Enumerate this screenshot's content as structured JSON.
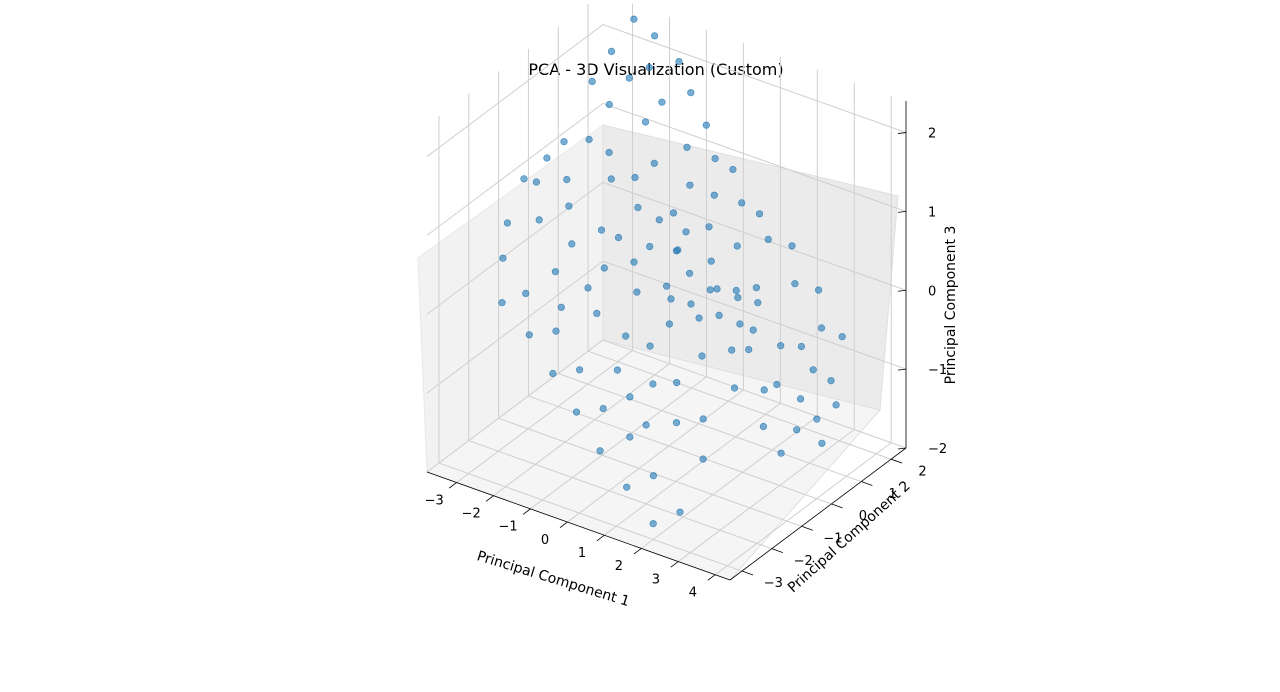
{
  "chart_data": {
    "type": "scatter",
    "projection": "3d",
    "title": "PCA - 3D Visualization (Custom)",
    "xlabel": "Principal Component 1",
    "ylabel": "Principal Component 2",
    "zlabel": "Principal Component 3",
    "xlim": [
      -3.8,
      4.4
    ],
    "ylim": [
      -3.4,
      2.5
    ],
    "zlim": [
      -2.0,
      2.4
    ],
    "xticks": [
      "−3",
      "−2",
      "−1",
      "0",
      "1",
      "2",
      "3",
      "4"
    ],
    "yticks": [
      "−3",
      "−2",
      "−1",
      "0",
      "1",
      "2"
    ],
    "zticks": [
      "−2",
      "−1",
      "0",
      "1",
      "2"
    ],
    "grid": true,
    "marker_color": "#1f77b4",
    "marker_alpha": 0.6,
    "points": [
      [
        -2.6,
        1.3,
        2.2
      ],
      [
        -2.8,
        0.9,
        1.9
      ],
      [
        -2.5,
        1.1,
        1.6
      ],
      [
        -2.2,
        1.4,
        1.9
      ],
      [
        -1.9,
        1.7,
        2.0
      ],
      [
        -2.1,
        0.6,
        1.2
      ],
      [
        -1.6,
        1.2,
        1.5
      ],
      [
        -1.4,
        1.5,
        1.7
      ],
      [
        -1.2,
        1.0,
        1.1
      ],
      [
        -0.8,
        1.6,
        1.2
      ],
      [
        -0.6,
        0.9,
        0.6
      ],
      [
        -0.4,
        1.2,
        0.9
      ],
      [
        -0.1,
        0.7,
        0.5
      ],
      [
        0.2,
        1.1,
        0.5
      ],
      [
        0.5,
        0.8,
        0.2
      ],
      [
        0.8,
        1.3,
        0.3
      ],
      [
        1.1,
        0.9,
        -0.1
      ],
      [
        1.4,
        1.2,
        -0.1
      ],
      [
        1.8,
        0.6,
        -0.4
      ],
      [
        2.3,
        0.9,
        -0.6
      ],
      [
        2.6,
        0.4,
        -0.9
      ],
      [
        3.0,
        0.7,
        -1.1
      ],
      [
        3.3,
        0.2,
        -1.3
      ],
      [
        3.6,
        0.5,
        -1.2
      ],
      [
        3.2,
        -0.2,
        -1.5
      ],
      [
        2.8,
        -0.3,
        -1.2
      ],
      [
        2.5,
        0.1,
        -0.9
      ],
      [
        2.1,
        -0.4,
        -0.8
      ],
      [
        1.7,
        0.0,
        -0.5
      ],
      [
        1.3,
        -0.5,
        -0.5
      ],
      [
        0.9,
        -0.1,
        -0.2
      ],
      [
        0.5,
        -0.6,
        -0.2
      ],
      [
        0.1,
        -0.2,
        0.1
      ],
      [
        -0.3,
        -0.7,
        0.1
      ],
      [
        -0.7,
        -0.3,
        0.3
      ],
      [
        -1.1,
        -0.8,
        0.3
      ],
      [
        -1.5,
        -0.4,
        0.6
      ],
      [
        -1.9,
        -0.9,
        0.5
      ],
      [
        -2.3,
        -0.5,
        0.8
      ],
      [
        -2.7,
        -1.0,
        0.7
      ],
      [
        -3.1,
        -0.6,
        1.0
      ],
      [
        -3.4,
        -1.2,
        0.6
      ],
      [
        -3.6,
        -0.4,
        0.9
      ],
      [
        -3.2,
        -1.6,
        0.3
      ],
      [
        -2.9,
        -2.0,
        -0.1
      ],
      [
        -2.5,
        -1.7,
        0.0
      ],
      [
        -2.0,
        -2.2,
        -0.3
      ],
      [
        -1.6,
        -1.8,
        -0.3
      ],
      [
        -1.2,
        -2.4,
        -0.6
      ],
      [
        -0.8,
        -2.0,
        -0.6
      ],
      [
        -0.4,
        -2.6,
        -0.9
      ],
      [
        0.0,
        -2.2,
        -0.9
      ],
      [
        0.4,
        -2.8,
        -1.2
      ],
      [
        0.8,
        -2.3,
        -1.1
      ],
      [
        1.2,
        -2.9,
        -1.5
      ],
      [
        1.6,
        -2.5,
        -1.4
      ],
      [
        2.0,
        -3.0,
        -1.8
      ],
      [
        2.4,
        -2.6,
        -1.7
      ],
      [
        -1.0,
        0.2,
        0.8
      ],
      [
        -0.5,
        0.3,
        0.7
      ],
      [
        0.0,
        0.3,
        0.4
      ],
      [
        0.4,
        0.2,
        0.2
      ],
      [
        0.8,
        0.4,
        0.0
      ],
      [
        1.2,
        0.2,
        -0.2
      ],
      [
        1.6,
        0.4,
        -0.3
      ],
      [
        2.0,
        0.2,
        -0.5
      ],
      [
        -1.4,
        0.6,
        1.0
      ],
      [
        -1.8,
        0.3,
        1.0
      ],
      [
        -0.2,
        -1.2,
        -0.3
      ],
      [
        0.3,
        -1.0,
        -0.4
      ],
      [
        0.7,
        -1.4,
        -0.7
      ],
      [
        1.1,
        -1.1,
        -0.7
      ],
      [
        1.5,
        -1.6,
        -1.0
      ],
      [
        1.9,
        -1.2,
        -1.0
      ],
      [
        2.3,
        -1.7,
        -1.3
      ],
      [
        -0.9,
        -1.3,
        -0.1
      ],
      [
        -1.3,
        -1.1,
        0.1
      ],
      [
        -1.7,
        -1.5,
        -0.1
      ],
      [
        -2.1,
        -1.2,
        0.2
      ],
      [
        -0.6,
        2.0,
        1.4
      ],
      [
        -0.2,
        1.8,
        1.1
      ],
      [
        0.2,
        1.9,
        1.0
      ],
      [
        0.6,
        1.7,
        0.7
      ],
      [
        1.0,
        1.8,
        0.6
      ],
      [
        1.4,
        1.6,
        0.4
      ],
      [
        1.8,
        1.9,
        0.3
      ],
      [
        2.2,
        1.5,
        0.0
      ],
      [
        2.6,
        1.8,
        -0.1
      ],
      [
        3.0,
        1.4,
        -0.4
      ],
      [
        3.4,
        1.6,
        -0.5
      ],
      [
        -1.1,
        2.1,
        1.7
      ],
      [
        -1.5,
        2.2,
        2.0
      ],
      [
        -2.0,
        2.0,
        2.3
      ],
      [
        -2.4,
        1.8,
        2.5
      ],
      [
        0.3,
        -0.3,
        0.0
      ],
      [
        0.6,
        0.0,
        -0.1
      ],
      [
        0.9,
        0.5,
        0.0
      ],
      [
        1.3,
        0.7,
        -0.1
      ],
      [
        -0.2,
        0.5,
        0.3
      ],
      [
        -0.6,
        0.1,
        0.4
      ],
      [
        2.7,
        1.1,
        -0.6
      ],
      [
        3.1,
        1.0,
        -0.8
      ],
      [
        3.5,
        1.1,
        -0.9
      ],
      [
        3.8,
        0.9,
        -1.1
      ],
      [
        3.9,
        0.3,
        -1.4
      ],
      [
        -3.0,
        0.2,
        1.3
      ],
      [
        -3.3,
        0.0,
        1.1
      ],
      [
        -2.6,
        -0.2,
        1.0
      ],
      [
        -0.1,
        -1.6,
        -0.6
      ],
      [
        0.4,
        -1.8,
        -0.8
      ],
      [
        1.0,
        -2.0,
        -1.0
      ],
      [
        -2.4,
        0.3,
        1.4
      ],
      [
        -1.2,
        -0.2,
        0.5
      ],
      [
        0.1,
        1.4,
        0.8
      ],
      [
        1.6,
        1.0,
        -0.2
      ]
    ]
  }
}
